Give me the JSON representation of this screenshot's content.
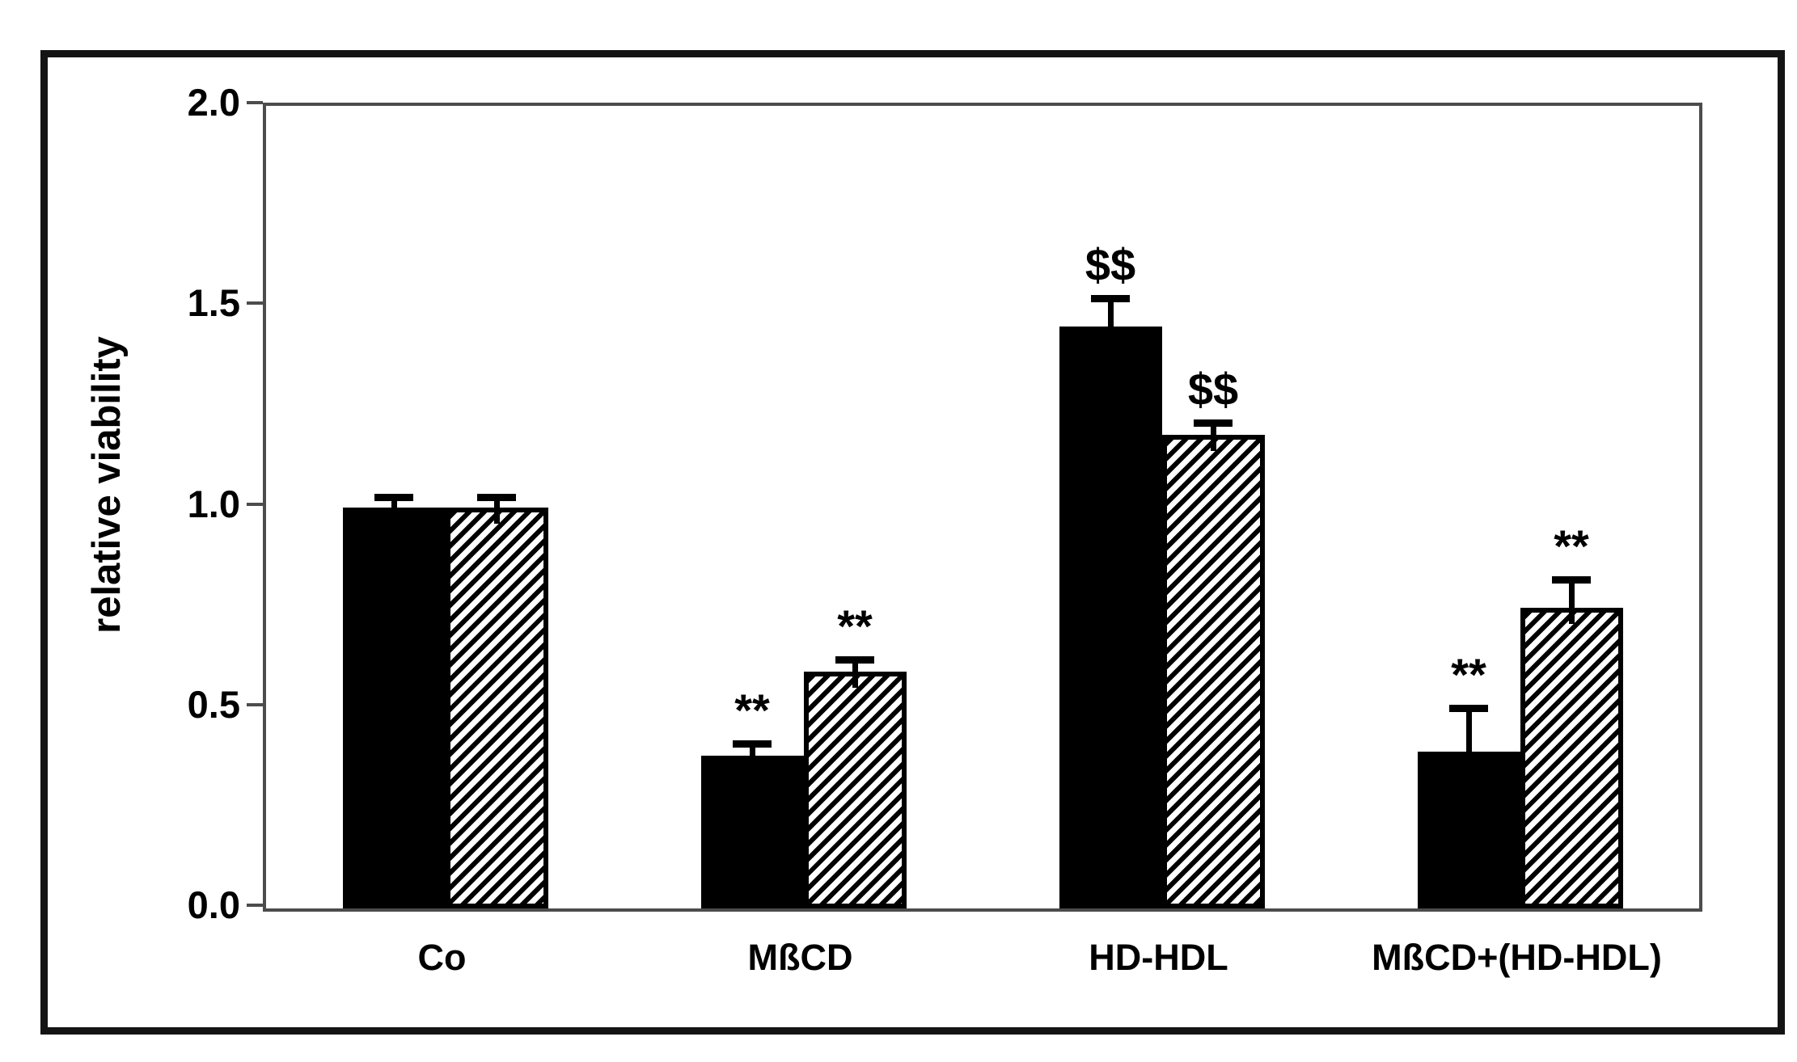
{
  "chart_data": {
    "type": "bar",
    "title": "",
    "xlabel": "",
    "ylabel": "relative viability",
    "ylim": [
      0.0,
      2.0
    ],
    "yticks": [
      0.0,
      0.5,
      1.0,
      1.5,
      2.0
    ],
    "ytick_labels": [
      "0.0",
      "0.5",
      "1.0",
      "1.5",
      "2.0"
    ],
    "categories": [
      "Co",
      "MßCD",
      "HD-HDL",
      "MßCD+(HD-HDL)"
    ],
    "series": [
      {
        "name": "solid-black-bars",
        "fill": "solid-black",
        "values": [
          1.0,
          0.38,
          1.45,
          0.39
        ],
        "errors": [
          0.015,
          0.02,
          0.06,
          0.1
        ],
        "annotations": [
          "",
          "**",
          "$$",
          "**"
        ]
      },
      {
        "name": "diagonal-hatched-bars",
        "fill": "diagonal-hatch",
        "values": [
          1.0,
          0.59,
          1.18,
          0.75
        ],
        "errors": [
          0.015,
          0.02,
          0.02,
          0.06
        ],
        "annotations": [
          "",
          "**",
          "$$",
          "**"
        ]
      }
    ],
    "grid": false,
    "legend_position": "none",
    "error_bars": "upper-only"
  },
  "colors": {
    "bar_fill": "#000000",
    "axis_line": "#4c4c4c",
    "figure_border": "#141414",
    "background": "#ffffff",
    "text": "#000000"
  }
}
